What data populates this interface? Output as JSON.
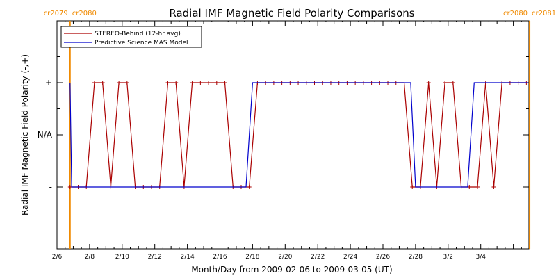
{
  "chart_data": {
    "type": "line",
    "title": "Radial IMF Magnetic Field Polarity Comparisons",
    "xlabel": "Month/Day from 2009-02-06 to 2009-03-05 (UT)",
    "ylabel": "Radial IMF Magnetic Field Polarity (-,+)",
    "x_tick_labels": [
      "2/6",
      "2/8",
      "2/10",
      "2/12",
      "2/14",
      "2/16",
      "2/18",
      "2/20",
      "2/22",
      "2/24",
      "2/26",
      "2/28",
      "3/2",
      "3/4"
    ],
    "x_tick_days": [
      0,
      2,
      4,
      6,
      8,
      10,
      12,
      14,
      16,
      18,
      20,
      22,
      24,
      26
    ],
    "xlim_days": [
      0,
      29
    ],
    "y_tick_labels": [
      "-",
      "N/A",
      "+"
    ],
    "y_tick_values": [
      -1,
      0,
      1
    ],
    "ylim": [
      -2,
      2
    ],
    "cr_markers": [
      {
        "day": 0.8,
        "label_left": "cr2079",
        "label_right": "cr2080"
      },
      {
        "day": 29.0,
        "label_left": "cr2080",
        "label_right": "cr2081"
      }
    ],
    "legend": {
      "position": "top-left"
    },
    "series": [
      {
        "name": "STEREO-Behind (12-hr avg)",
        "color": "#aa0000",
        "markers": true,
        "x": [
          0.8,
          1.3,
          1.8,
          2.3,
          2.8,
          3.3,
          3.8,
          4.3,
          4.8,
          5.3,
          5.8,
          6.3,
          6.8,
          7.3,
          7.8,
          8.3,
          8.8,
          9.3,
          9.8,
          10.3,
          10.8,
          11.3,
          11.8,
          12.3,
          12.8,
          13.3,
          13.8,
          14.3,
          14.8,
          15.3,
          15.8,
          16.3,
          16.8,
          17.3,
          17.8,
          18.3,
          18.8,
          19.3,
          19.8,
          20.3,
          20.8,
          21.3,
          21.8,
          22.3,
          22.8,
          23.3,
          23.8,
          24.3,
          24.8,
          25.3,
          25.8,
          26.3,
          26.8,
          27.3,
          27.8,
          28.3,
          28.8
        ],
        "y": [
          -1,
          -1,
          -1,
          1,
          1,
          -1,
          1,
          1,
          -1,
          -1,
          -1,
          -1,
          1,
          1,
          -1,
          1,
          1,
          1,
          1,
          1,
          -1,
          -1,
          -1,
          1,
          1,
          1,
          1,
          1,
          1,
          1,
          1,
          1,
          1,
          1,
          1,
          1,
          1,
          1,
          1,
          1,
          1,
          1,
          -1,
          -1,
          1,
          -1,
          1,
          1,
          -1,
          -1,
          -1,
          1,
          -1,
          1,
          1,
          1,
          1
        ]
      },
      {
        "name": "Predictive Science MAS Model",
        "color": "#0000cc",
        "markers": false,
        "x": [
          0.8,
          0.9,
          1.2,
          11.6,
          12.0,
          21.7,
          22.0,
          25.2,
          25.6,
          28.9
        ],
        "y": [
          1,
          -1,
          -1,
          -1,
          1,
          1,
          -1,
          -1,
          1,
          1
        ]
      }
    ]
  }
}
